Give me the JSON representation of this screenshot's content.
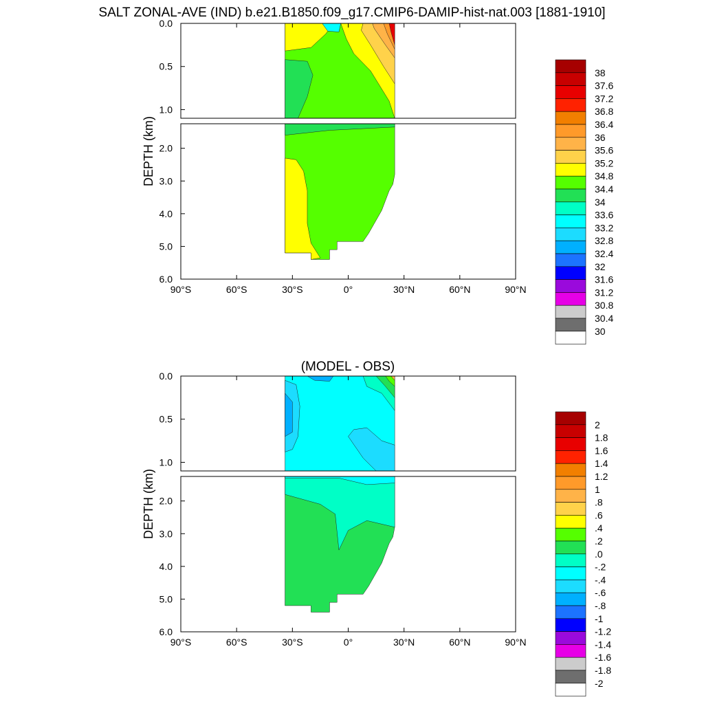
{
  "chart_data": [
    {
      "type": "heatmap",
      "subtype": "filled-contour depth section",
      "title": "SALT ZONAL-AVE (IND) b.e21.B1850.f09_g17.CMIP6-DAMIP-hist-nat.003 [1881-1910]",
      "ylabel": "DEPTH (km)",
      "xlabel": "",
      "x_ticks": [
        "90°S",
        "60°S",
        "30°S",
        "0°",
        "30°N",
        "60°N",
        "90°N"
      ],
      "y_ticks_upper": [
        "0.0",
        "0.5",
        "1.0"
      ],
      "y_ticks_lower": [
        "2.0",
        "3.0",
        "4.0",
        "5.0",
        "6.0"
      ],
      "xlim": [
        -90,
        90
      ],
      "ylim_km": [
        6.0,
        0.0
      ],
      "upper_panel_depth_km": [
        0.0,
        1.1
      ],
      "data_extent_lat": [
        -34,
        25
      ],
      "colorbar_labels": [
        "38",
        "37.6",
        "37.2",
        "36.8",
        "36.4",
        "36",
        "35.6",
        "35.2",
        "34.8",
        "34.4",
        "34",
        "33.6",
        "33.2",
        "32.8",
        "32.4",
        "32",
        "31.6",
        "31.2",
        "30.8",
        "30.4",
        "30"
      ],
      "colorbar_colors": [
        "#a60000",
        "#c80000",
        "#e80000",
        "#ff2200",
        "#f27f00",
        "#ff9a2a",
        "#ffb348",
        "#ffd24a",
        "#ffff00",
        "#55ff00",
        "#22e055",
        "#00ffc6",
        "#00ffff",
        "#1cdcff",
        "#00b0ff",
        "#1c73ff",
        "#0000ff",
        "#9a0adc",
        "#e600e6",
        "#cccccc",
        "#6e6e6e",
        "#ffffff"
      ],
      "regions": [
        {
          "value_range": [
            34.8,
            35.2
          ],
          "where": "southern surface layer 0-0.4 km, 34°S-15°S"
        },
        {
          "value_range": [
            34.4,
            34.8
          ],
          "where": "most of upper ocean 0.1-1.1 km and deep ocean north of 25°S"
        },
        {
          "value_range": [
            34.0,
            34.4
          ],
          "where": "intermediate water 0.4-1.1 km, 34°S-25°S"
        },
        {
          "value_range": [
            34.8,
            35.2
          ],
          "where": "northern subsurface 0-1.1 km, 5°N-25°N"
        },
        {
          "value_range": [
            35.2,
            36.8
          ],
          "where": "northern surface, 10°N-25°N"
        },
        {
          "value_range": [
            36.8,
            38.0
          ],
          "where": "far-north surface near 24°N"
        },
        {
          "value_range": [
            33.2,
            34.0
          ],
          "where": "thin surface patch near 12°S-5°S"
        },
        {
          "value_range": [
            34.8,
            35.2
          ],
          "where": "bottom water 2.3-5.4 km, 34°S-20°S"
        }
      ]
    },
    {
      "type": "heatmap",
      "subtype": "filled-contour depth section",
      "title": "(MODEL - OBS)",
      "ylabel": "DEPTH (km)",
      "xlabel": "",
      "x_ticks": [
        "90°S",
        "60°S",
        "30°S",
        "0°",
        "30°N",
        "60°N",
        "90°N"
      ],
      "y_ticks_upper": [
        "0.0",
        "0.5",
        "1.0"
      ],
      "y_ticks_lower": [
        "2.0",
        "3.0",
        "4.0",
        "5.0",
        "6.0"
      ],
      "xlim": [
        -90,
        90
      ],
      "ylim_km": [
        6.0,
        0.0
      ],
      "colorbar_labels": [
        "2",
        "1.8",
        "1.6",
        "1.4",
        "1.2",
        "1",
        ".8",
        ".6",
        ".4",
        ".2",
        ".0",
        "-.2",
        "-.4",
        "-.6",
        "-.8",
        "-1",
        "-1.2",
        "-1.4",
        "-1.6",
        "-1.8",
        "-2"
      ],
      "colorbar_colors": [
        "#a60000",
        "#c80000",
        "#e80000",
        "#ff2200",
        "#f27f00",
        "#ff9a2a",
        "#ffb348",
        "#ffd24a",
        "#ffff00",
        "#55ff00",
        "#22e055",
        "#00ffc6",
        "#00ffff",
        "#1cdcff",
        "#00b0ff",
        "#1c73ff",
        "#0000ff",
        "#9a0adc",
        "#e600e6",
        "#cccccc",
        "#6e6e6e",
        "#ffffff"
      ],
      "regions": [
        {
          "value_range": [
            -0.4,
            -0.2
          ],
          "where": "upper ocean 0-1.1 km, most latitudes"
        },
        {
          "value_range": [
            -0.8,
            -0.4
          ],
          "where": "southern upper ocean 0-0.9 km, 34°S-25°S"
        },
        {
          "value_range": [
            -0.6,
            -0.4
          ],
          "where": "northern patch 0.6-1.1 km, 0°-25°N"
        },
        {
          "value_range": [
            0.0,
            0.4
          ],
          "where": "northern surface near 15°N-25°N"
        },
        {
          "value_range": [
            -0.2,
            0.0
          ],
          "where": "transition layer 1.2-3.0 km"
        },
        {
          "value_range": [
            0.0,
            0.2
          ],
          "where": "deep ocean 1.8-5.4 km"
        }
      ]
    }
  ]
}
